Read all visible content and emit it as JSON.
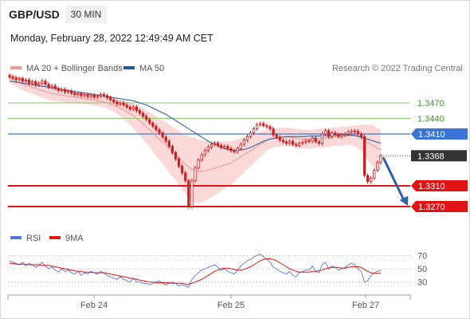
{
  "header": {
    "pair": "GBP/USD",
    "timeframe": "30 MIN",
    "datetime": "Monday, February 28, 2022 12:49:49 AM CET",
    "credit": "Research © 2022 Trading Central"
  },
  "legend": {
    "bb_label": "MA 20 + Bollinger Bands",
    "ma50_label": "MA 50",
    "rsi_label": "RSI",
    "rsi_ma_label": "9MA"
  },
  "colors": {
    "candle": "#cc1f1f",
    "bollinger_fill": "#fcd9d9",
    "ma20": "#e99696",
    "ma50": "#1f5a9a",
    "level_green": "#8cc56e",
    "level_blue": "#3b74d6",
    "level_red": "#e01414",
    "current": "#333333",
    "arrow": "#2d61a8",
    "rsi": "#5577dd",
    "rsi_ma": "#e01414"
  },
  "chart_data": [
    {
      "type": "candlestick",
      "title": "GBP/USD",
      "timeframe": "30 MIN",
      "x_ticks": [
        "Feb 24",
        "Feb 25",
        "Feb 27"
      ],
      "ylim": [
        1.323,
        1.353
      ],
      "levels": [
        {
          "value": 1.347,
          "label": "1.3470",
          "style": "green"
        },
        {
          "value": 1.344,
          "label": "1.3440",
          "style": "green"
        },
        {
          "value": 1.341,
          "label": "1.3410",
          "style": "blue"
        },
        {
          "value": 1.3368,
          "label": "1.3368",
          "style": "current"
        },
        {
          "value": 1.331,
          "label": "1.3310",
          "style": "red"
        },
        {
          "value": 1.327,
          "label": "1.3270",
          "style": "red"
        }
      ],
      "close": [
        1.352,
        1.3518,
        1.3515,
        1.3517,
        1.3512,
        1.3514,
        1.3508,
        1.3511,
        1.3505,
        1.3508,
        1.3512,
        1.3506,
        1.35,
        1.3503,
        1.3498,
        1.3494,
        1.3496,
        1.3491,
        1.3493,
        1.3489,
        1.3486,
        1.3488,
        1.3484,
        1.3486,
        1.3482,
        1.3485,
        1.3481,
        1.3483,
        1.3486,
        1.3484,
        1.348,
        1.3476,
        1.3472,
        1.3468,
        1.347,
        1.3466,
        1.3462,
        1.3458,
        1.3462,
        1.3455,
        1.345,
        1.3444,
        1.3438,
        1.3431,
        1.3425,
        1.3418,
        1.3412,
        1.3404,
        1.3396,
        1.3386,
        1.3374,
        1.3362,
        1.3348,
        1.3335,
        1.332,
        1.327,
        1.332,
        1.3345,
        1.336,
        1.337,
        1.3378,
        1.3385,
        1.339,
        1.3392,
        1.3388,
        1.3384,
        1.3386,
        1.3382,
        1.3378,
        1.3376,
        1.3382,
        1.339,
        1.3398,
        1.3405,
        1.3412,
        1.342,
        1.3428,
        1.343,
        1.3426,
        1.3424,
        1.342,
        1.3408,
        1.3404,
        1.3398,
        1.3395,
        1.3392,
        1.3396,
        1.339,
        1.3388,
        1.3392,
        1.3394,
        1.3397,
        1.3396,
        1.3402,
        1.3395,
        1.3392,
        1.341,
        1.3416,
        1.3405,
        1.3412,
        1.3409,
        1.3405,
        1.3408,
        1.341,
        1.3414,
        1.3416,
        1.3415,
        1.341,
        1.3405,
        1.333,
        1.3318,
        1.3325,
        1.334,
        1.3355,
        1.3368
      ],
      "ma20": [
        1.3518,
        1.3515,
        1.3512,
        1.3509,
        1.3506,
        1.3504,
        1.3502,
        1.35,
        1.3498,
        1.3496,
        1.3494,
        1.3492,
        1.349,
        1.3488,
        1.3487,
        1.3486,
        1.3485,
        1.3484,
        1.3483,
        1.3482,
        1.3481,
        1.348,
        1.3479,
        1.3478,
        1.3477,
        1.3476,
        1.3475,
        1.3474,
        1.3473,
        1.3472,
        1.347,
        1.3468,
        1.3466,
        1.3463,
        1.346,
        1.3457,
        1.3453,
        1.3449,
        1.3445,
        1.344,
        1.3435,
        1.343,
        1.3424,
        1.3418,
        1.3412,
        1.3406,
        1.34,
        1.3394,
        1.3388,
        1.3382,
        1.3376,
        1.337,
        1.3364,
        1.3358,
        1.3352,
        1.3346,
        1.3342,
        1.334,
        1.3338,
        1.3338,
        1.3339,
        1.334,
        1.3342,
        1.3344,
        1.3346,
        1.3348,
        1.335,
        1.3352,
        1.3354,
        1.3358,
        1.3362,
        1.3366,
        1.337,
        1.3374,
        1.3378,
        1.3382,
        1.3386,
        1.339,
        1.3394,
        1.3398,
        1.34,
        1.3402,
        1.3403,
        1.3404,
        1.3404,
        1.3404,
        1.3404,
        1.3403,
        1.3402,
        1.3401,
        1.34,
        1.34,
        1.34,
        1.34,
        1.3401,
        1.3402,
        1.3402,
        1.3403,
        1.3403,
        1.3404,
        1.3405,
        1.3405,
        1.3406,
        1.3406,
        1.3407,
        1.3407,
        1.3406,
        1.3405,
        1.3402,
        1.3398,
        1.3394,
        1.339,
        1.3386,
        1.3382,
        1.3379
      ],
      "ma50": [
        1.3512,
        1.3511,
        1.351,
        1.3509,
        1.3508,
        1.3507,
        1.3506,
        1.3505,
        1.3504,
        1.3503,
        1.3502,
        1.3501,
        1.35,
        1.3499,
        1.3498,
        1.3497,
        1.3496,
        1.3495,
        1.3494,
        1.3493,
        1.3492,
        1.3491,
        1.349,
        1.3489,
        1.3488,
        1.3487,
        1.3486,
        1.3485,
        1.3484,
        1.3483,
        1.3482,
        1.3481,
        1.348,
        1.3479,
        1.3478,
        1.3477,
        1.3476,
        1.3475,
        1.3474,
        1.3472,
        1.347,
        1.3468,
        1.3466,
        1.3463,
        1.346,
        1.3457,
        1.3454,
        1.3451,
        1.3448,
        1.3444,
        1.344,
        1.3436,
        1.3432,
        1.3428,
        1.3424,
        1.342,
        1.3416,
        1.3412,
        1.3408,
        1.3404,
        1.34,
        1.3396,
        1.3393,
        1.339,
        1.3387,
        1.3384,
        1.3382,
        1.338,
        1.3379,
        1.3378,
        1.3378,
        1.3379,
        1.338,
        1.3382,
        1.3384,
        1.3387,
        1.339,
        1.3393,
        1.3396,
        1.3398,
        1.34,
        1.3401,
        1.3402,
        1.3403,
        1.3404,
        1.3405,
        1.3405,
        1.3405,
        1.3405,
        1.3405,
        1.3405,
        1.3405,
        1.3406,
        1.3406,
        1.3406,
        1.3406,
        1.3407,
        1.3407,
        1.3407,
        1.3408,
        1.3408,
        1.3408,
        1.3408,
        1.3408,
        1.3408,
        1.3408,
        1.3407,
        1.3406,
        1.3404,
        1.3402,
        1.34,
        1.3398,
        1.3396,
        1.3394,
        1.3392
      ],
      "bb_halfwidth": [
        0.001,
        0.001,
        0.0011,
        0.0011,
        0.0012,
        0.0012,
        0.0013,
        0.0013,
        0.0013,
        0.0014,
        0.0014,
        0.0014,
        0.0014,
        0.0014,
        0.0014,
        0.0013,
        0.0013,
        0.0013,
        0.0012,
        0.0012,
        0.0012,
        0.0011,
        0.0011,
        0.0011,
        0.001,
        0.001,
        0.001,
        0.001,
        0.001,
        0.001,
        0.0011,
        0.0012,
        0.0013,
        0.0014,
        0.0016,
        0.0018,
        0.002,
        0.0022,
        0.0024,
        0.0026,
        0.0028,
        0.003,
        0.0032,
        0.0034,
        0.0036,
        0.0038,
        0.004,
        0.0042,
        0.0044,
        0.0046,
        0.0048,
        0.005,
        0.0052,
        0.0054,
        0.0056,
        0.006,
        0.0062,
        0.0062,
        0.0061,
        0.006,
        0.0058,
        0.0056,
        0.0054,
        0.0052,
        0.005,
        0.0048,
        0.0046,
        0.0044,
        0.0042,
        0.004,
        0.0038,
        0.0036,
        0.0034,
        0.0032,
        0.003,
        0.0028,
        0.0026,
        0.0024,
        0.0022,
        0.002,
        0.0019,
        0.0018,
        0.0018,
        0.0018,
        0.0018,
        0.0018,
        0.0018,
        0.0018,
        0.0018,
        0.0018,
        0.0018,
        0.0018,
        0.0018,
        0.0018,
        0.0018,
        0.0018,
        0.0018,
        0.0018,
        0.0018,
        0.0018,
        0.0018,
        0.0018,
        0.0018,
        0.0018,
        0.0018,
        0.0018,
        0.002,
        0.0022,
        0.0026,
        0.003,
        0.0034,
        0.0038,
        0.004,
        0.004,
        0.004
      ],
      "forecast_to": 1.327
    },
    {
      "type": "line",
      "title": "RSI",
      "series_names": [
        "RSI",
        "9MA"
      ],
      "ylim": [
        20,
        80
      ],
      "y_ticks": [
        70,
        50,
        30
      ],
      "rsi": [
        62,
        60,
        58,
        56,
        60,
        54,
        58,
        56,
        52,
        55,
        60,
        54,
        50,
        53,
        48,
        45,
        50,
        46,
        48,
        44,
        42,
        46,
        40,
        44,
        42,
        46,
        44,
        42,
        46,
        44,
        40,
        38,
        36,
        34,
        38,
        34,
        32,
        30,
        36,
        30,
        30,
        28,
        28,
        26,
        28,
        30,
        32,
        28,
        26,
        28,
        30,
        28,
        24,
        26,
        24,
        22,
        34,
        40,
        44,
        48,
        50,
        52,
        54,
        56,
        52,
        48,
        50,
        46,
        44,
        42,
        48,
        54,
        58,
        62,
        64,
        68,
        70,
        72,
        68,
        64,
        60,
        52,
        50,
        46,
        44,
        42,
        46,
        40,
        38,
        44,
        46,
        48,
        48,
        54,
        46,
        44,
        56,
        60,
        50,
        54,
        52,
        48,
        50,
        52,
        56,
        58,
        56,
        50,
        46,
        30,
        32,
        40,
        44,
        46,
        48
      ],
      "rsi_ma": [
        58,
        58,
        57,
        57,
        57,
        57,
        56,
        56,
        56,
        56,
        55,
        55,
        55,
        54,
        53,
        52,
        51,
        50,
        49,
        48,
        47,
        46,
        46,
        45,
        45,
        45,
        44,
        44,
        44,
        44,
        43,
        42,
        41,
        40,
        39,
        38,
        37,
        36,
        35,
        34,
        33,
        32,
        31,
        30,
        30,
        29,
        29,
        29,
        29,
        29,
        28,
        28,
        28,
        28,
        27,
        27,
        28,
        30,
        32,
        34,
        37,
        40,
        43,
        46,
        48,
        50,
        51,
        51,
        50,
        49,
        48,
        48,
        49,
        51,
        53,
        56,
        59,
        62,
        64,
        65,
        65,
        64,
        62,
        59,
        56,
        53,
        50,
        48,
        46,
        45,
        45,
        45,
        45,
        46,
        46,
        47,
        48,
        50,
        51,
        52,
        52,
        52,
        51,
        51,
        52,
        53,
        53,
        53,
        52,
        49,
        46,
        44,
        43,
        43,
        43
      ]
    }
  ]
}
